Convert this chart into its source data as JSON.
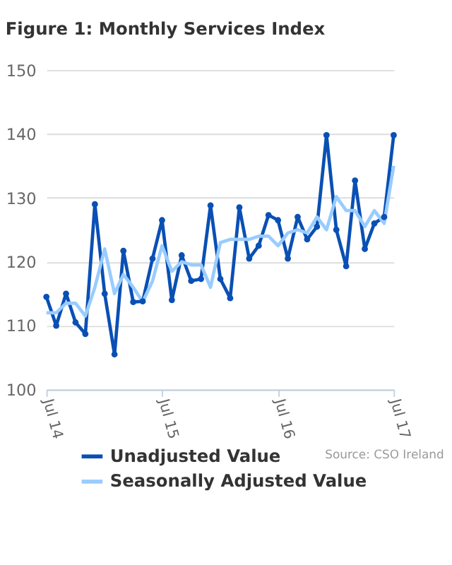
{
  "chart_data": {
    "type": "line",
    "title": "Figure 1: Monthly Services Index",
    "x": [
      "2014-07",
      "2014-08",
      "2014-09",
      "2014-10",
      "2014-11",
      "2014-12",
      "2015-01",
      "2015-02",
      "2015-03",
      "2015-04",
      "2015-05",
      "2015-06",
      "2015-07",
      "2015-08",
      "2015-09",
      "2015-10",
      "2015-11",
      "2015-12",
      "2016-01",
      "2016-02",
      "2016-03",
      "2016-04",
      "2016-05",
      "2016-06",
      "2016-07",
      "2016-08",
      "2016-09",
      "2016-10",
      "2016-11",
      "2016-12",
      "2017-01",
      "2017-02",
      "2017-03",
      "2017-04",
      "2017-05",
      "2017-06",
      "2017-07"
    ],
    "series": [
      {
        "name": "Unadjusted Value",
        "color": "#0a50b4",
        "marker": "circle",
        "values": [
          114.5,
          110,
          115,
          110.5,
          108.7,
          129,
          115,
          105.5,
          121.7,
          113.7,
          113.8,
          120.5,
          126.5,
          114,
          121,
          117,
          117.3,
          128.8,
          117.3,
          114.3,
          128.5,
          120.5,
          122.5,
          127.3,
          126.5,
          120.5,
          127,
          123.5,
          125.5,
          139.8,
          125,
          119.3,
          132.7,
          122,
          126,
          127,
          139.8
        ]
      },
      {
        "name": "Seasonally Adjusted Value",
        "color": "#99ccff",
        "marker": "none",
        "values": [
          112,
          112,
          113.5,
          113.5,
          111.5,
          116,
          122,
          115,
          118,
          116,
          113.7,
          117,
          122.5,
          118.5,
          120,
          119.5,
          119.5,
          116,
          123,
          123.5,
          123.5,
          123.5,
          124,
          124,
          122.5,
          124.5,
          125,
          124.5,
          127,
          125,
          130.2,
          128,
          128,
          125.5,
          128,
          126,
          135
        ]
      }
    ],
    "xlim": [
      "2014-07",
      "2017-07"
    ],
    "xticks": [
      {
        "value": "2014-07",
        "label": "Jul 14"
      },
      {
        "value": "2015-07",
        "label": "Jul 15"
      },
      {
        "value": "2016-07",
        "label": "Jul 16"
      },
      {
        "value": "2017-07",
        "label": "Jul 17"
      }
    ],
    "ylim": [
      100,
      150
    ],
    "yticks": [
      100,
      110,
      120,
      130,
      140,
      150
    ],
    "grid": "y",
    "legend": "bottom",
    "line_style": "solid",
    "annotations": [
      "Source: CSO Ireland"
    ]
  }
}
